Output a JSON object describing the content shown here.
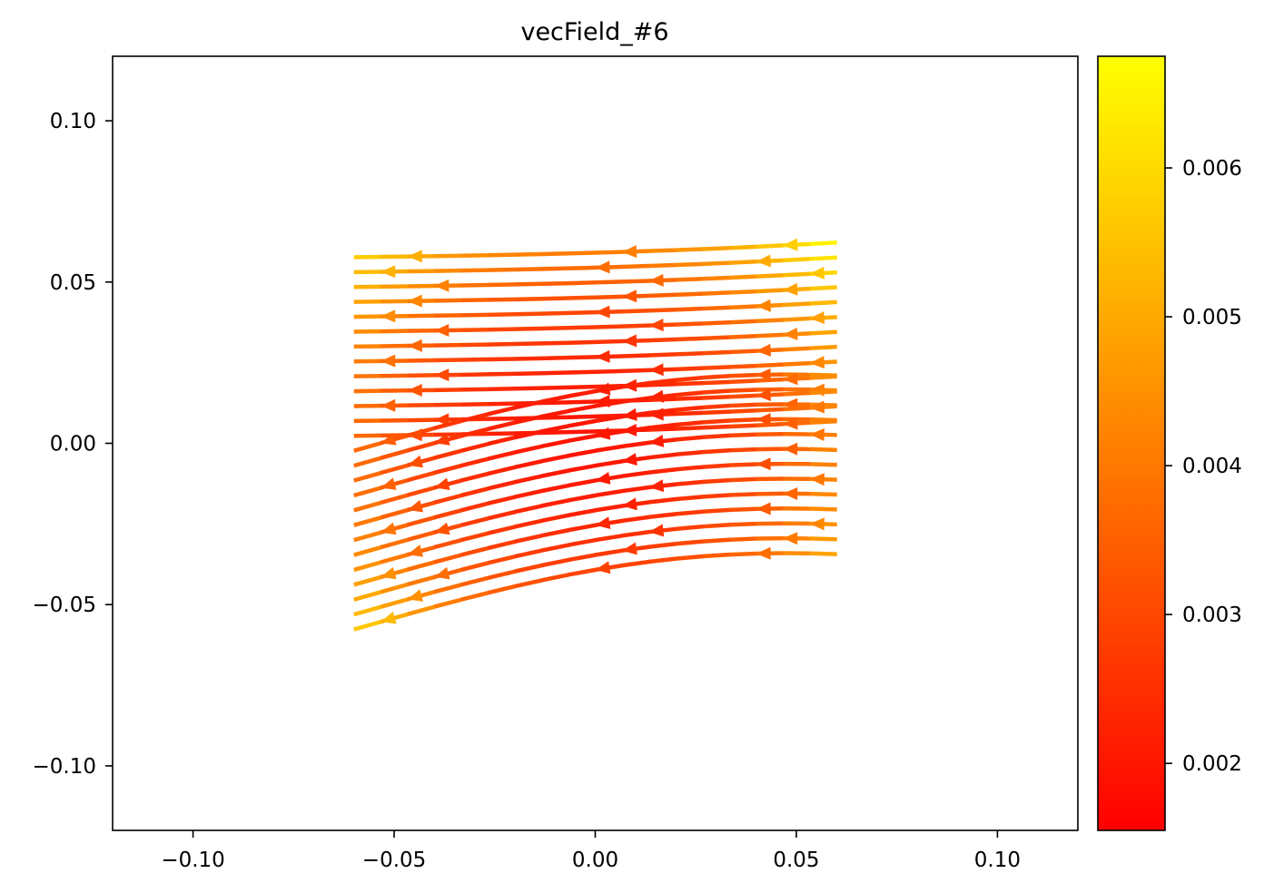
{
  "chart_data": {
    "type": "streamplot",
    "title": "vecField_#6",
    "xlabel": "",
    "ylabel": "",
    "xlim": [
      -0.12,
      0.12
    ],
    "ylim": [
      -0.12,
      0.12
    ],
    "x_ticks": [
      -0.1,
      -0.05,
      0.0,
      0.05,
      0.1
    ],
    "x_tick_labels": [
      "−0.10",
      "−0.05",
      "0.00",
      "0.05",
      "0.10"
    ],
    "y_ticks": [
      -0.1,
      -0.05,
      0.0,
      0.05,
      0.1
    ],
    "y_tick_labels": [
      "−0.10",
      "−0.05",
      "0.00",
      "0.05",
      "0.10"
    ],
    "grid": false,
    "field_domain": {
      "x": [
        -0.06,
        0.06
      ],
      "y": [
        -0.06,
        0.06
      ]
    },
    "flow_direction": "leftward (-x)",
    "colormap": "autumn",
    "colormap_colors": [
      "#ff0000",
      "#ffff00"
    ],
    "colorbar": {
      "range": [
        0.00155,
        0.00675
      ],
      "ticks": [
        0.002,
        0.003,
        0.004,
        0.005,
        0.006
      ],
      "tick_labels": [
        "0.002",
        "0.003",
        "0.004",
        "0.005",
        "0.006"
      ]
    }
  }
}
